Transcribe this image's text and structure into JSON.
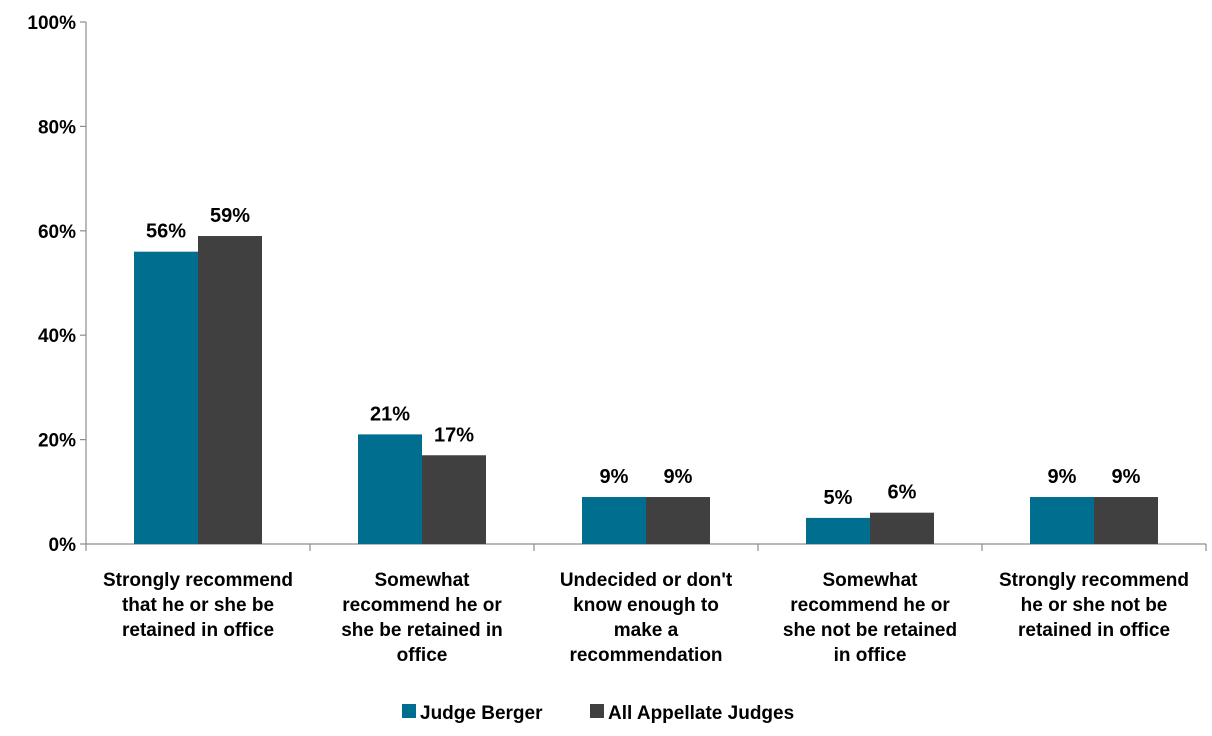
{
  "chart_data": {
    "type": "bar",
    "title": "",
    "xlabel": "",
    "ylabel": "",
    "categories": [
      "Strongly recommend that he or she be retained in office",
      "Somewhat recommend he or she be retained in office",
      "Undecided or don't know enough to make a recommendation",
      "Somewhat recommend he or she not be retained in office",
      "Strongly recommend he or she not be retained in office"
    ],
    "category_lines": [
      [
        "Strongly recommend",
        "that he or she be",
        "retained in office"
      ],
      [
        "Somewhat",
        "recommend he or",
        "she be retained in",
        "office"
      ],
      [
        "Undecided or don't",
        "know enough to",
        "make a",
        "recommendation"
      ],
      [
        "Somewhat",
        "recommend he or",
        "she not be retained",
        "in office"
      ],
      [
        "Strongly recommend",
        "he or she not be",
        "retained in office"
      ]
    ],
    "series": [
      {
        "name": "Judge Berger",
        "color": "#006E8F",
        "values": [
          56,
          21,
          9,
          5,
          9
        ],
        "labels": [
          "56%",
          "21%",
          "9%",
          "5%",
          "9%"
        ]
      },
      {
        "name": "All Appellate Judges",
        "color": "#404040",
        "values": [
          59,
          17,
          9,
          6,
          9
        ],
        "labels": [
          "59%",
          "17%",
          "9%",
          "6%",
          "9%"
        ]
      }
    ],
    "ylim": [
      0,
      100
    ],
    "yticks": [
      0,
      20,
      40,
      60,
      80,
      100
    ],
    "ytick_labels": [
      "0%",
      "20%",
      "40%",
      "60%",
      "80%",
      "100%"
    ],
    "grid": false,
    "legend_position": "bottom-center"
  }
}
